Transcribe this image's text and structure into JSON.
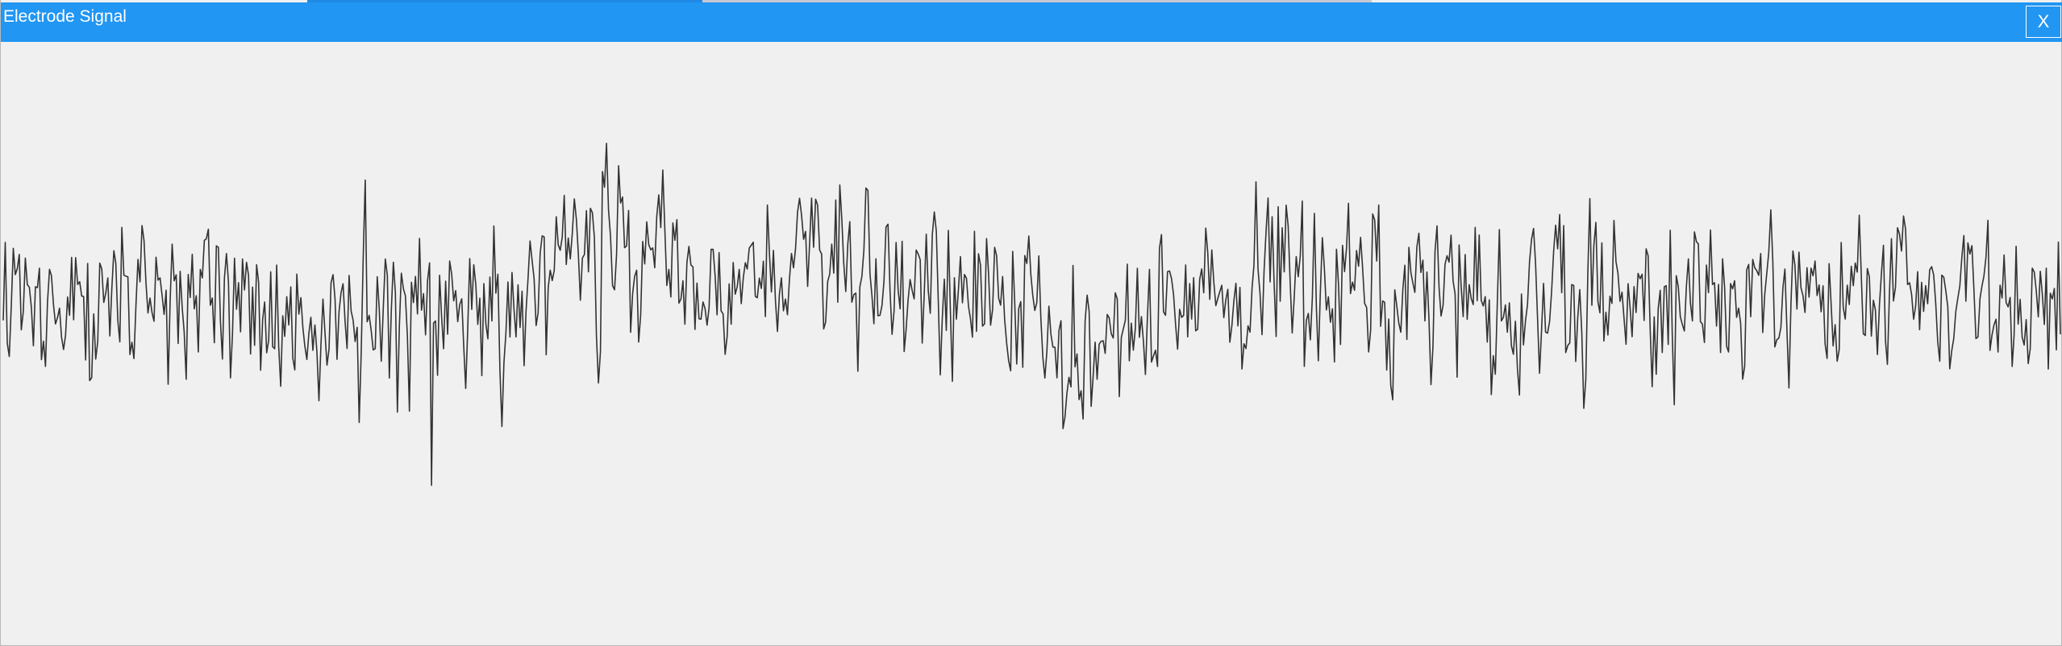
{
  "window": {
    "title": "Electrode Signal",
    "close_label": "X",
    "close_icon": "close-icon"
  },
  "colors": {
    "titlebar": "#2196f3",
    "title_text": "#ffffff",
    "background": "#f0f0f0",
    "trace": "#333333"
  },
  "chart_data": {
    "type": "line",
    "title": "",
    "xlabel": "",
    "ylabel": "",
    "grid": false,
    "axes_visible": false,
    "x_range": [
      0,
      1023
    ],
    "ylim": [
      -1.0,
      1.0
    ],
    "series": [
      {
        "samples": 1024,
        "envelope": {
          "x": [
            0,
            40,
            80,
            120,
            160,
            200,
            240,
            280,
            320,
            360,
            400,
            440,
            480,
            520,
            560,
            600,
            640,
            680,
            720,
            760,
            800,
            840,
            880,
            920,
            960,
            1000,
            1023
          ],
          "y": [
            0.05,
            0.13,
            0.09,
            0.12,
            0.13,
            0.1,
            0.12,
            0.22,
            0.3,
            0.18,
            0.21,
            0.22,
            0.13,
            0.03,
            0.02,
            0.17,
            0.15,
            0.13,
            0.11,
            0.12,
            0.14,
            0.13,
            0.12,
            0.13,
            0.17,
            0.15,
            0.14
          ]
        },
        "amplitude": 0.11,
        "extremes": {
          "max": {
            "x": 298,
            "y": 0.57
          },
          "min": {
            "x": 213,
            "y": -0.47
          }
        }
      }
    ]
  }
}
